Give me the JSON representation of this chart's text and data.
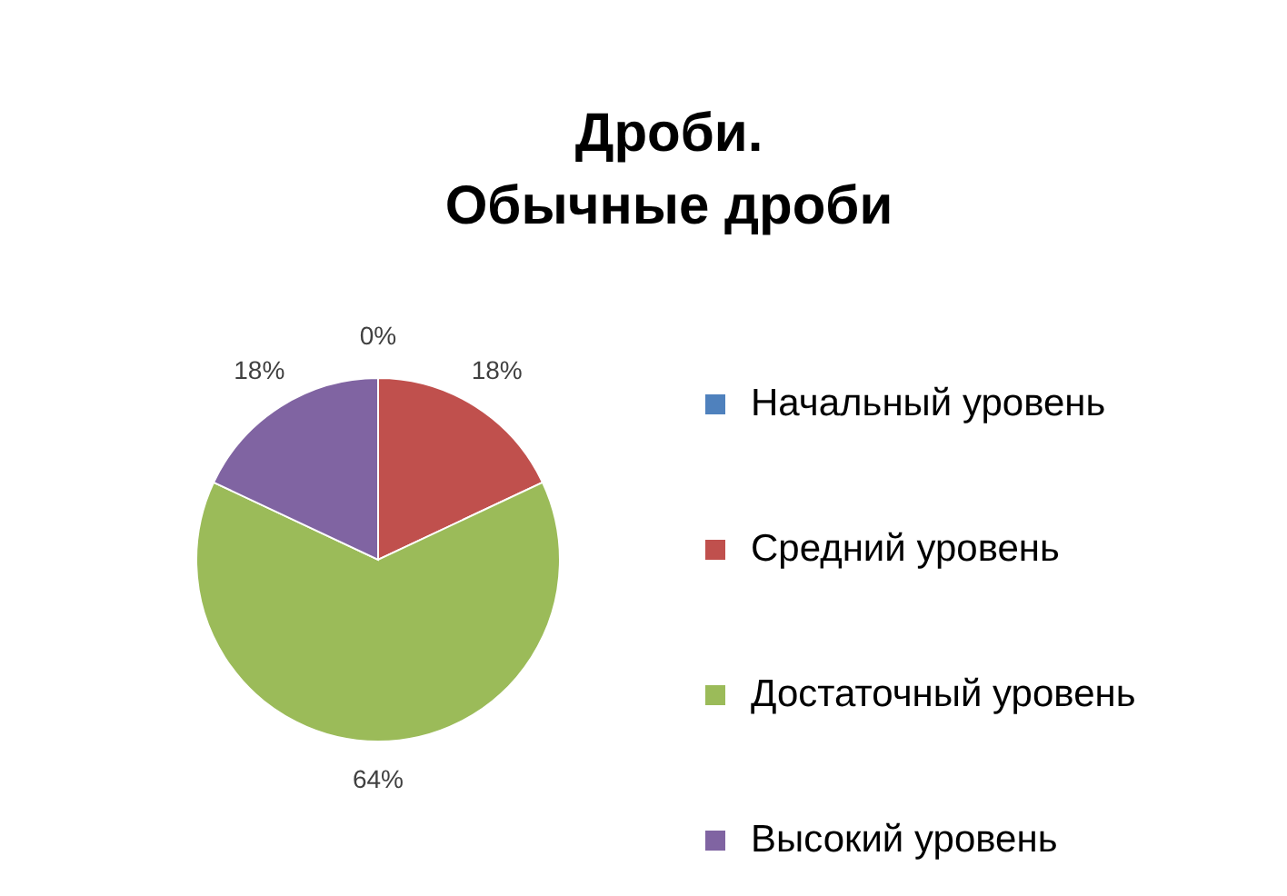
{
  "chart_data": {
    "type": "pie",
    "title": "Дроби.\nОбычные дроби",
    "categories": [
      "Начальный уровень",
      "Средний уровень",
      "Достаточный уровень",
      "Высокий уровень"
    ],
    "values": [
      0,
      18,
      64,
      18
    ],
    "colors": [
      "#4f81bd",
      "#c0504d",
      "#9bbb59",
      "#8064a2"
    ],
    "value_labels": [
      "0%",
      "18%",
      "64%",
      "18%"
    ],
    "legend": "right"
  }
}
